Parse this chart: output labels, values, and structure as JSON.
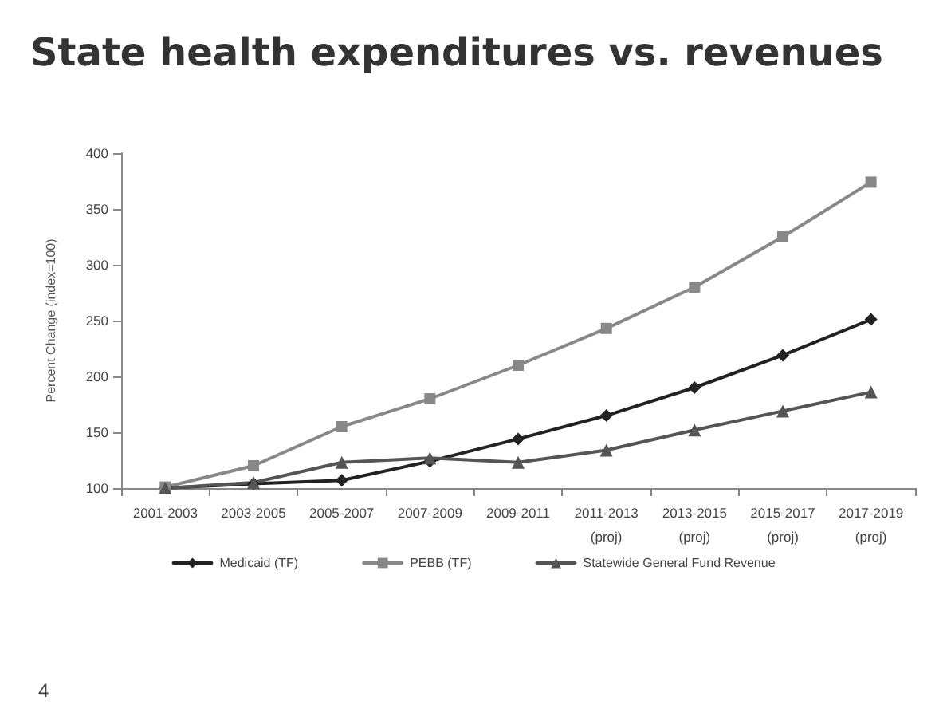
{
  "chart_data": {
    "type": "line",
    "title": "State health expenditures vs. revenues",
    "ylabel": "Percent Change (index=100)",
    "categories": [
      "2001-2003",
      "2003-2005",
      "2005-2007",
      "2007-2009",
      "2009-2011",
      "2011-2013\n(proj)",
      "2013-2015\n(proj)",
      "2015-2017\n(proj)",
      "2017-2019\n(proj)"
    ],
    "series": [
      {
        "name": "Medicaid (TF)",
        "color": "#222222",
        "marker": "diamond",
        "values": [
          100,
          104,
          107,
          124,
          144,
          165,
          190,
          219,
          251
        ]
      },
      {
        "name": "PEBB (TF)",
        "color": "#888888",
        "marker": "square",
        "values": [
          101,
          120,
          155,
          180,
          210,
          243,
          280,
          325,
          374
        ]
      },
      {
        "name": "Statewide General Fund Revenue",
        "color": "#555555",
        "marker": "triangle",
        "values": [
          100,
          105,
          123,
          127,
          123,
          134,
          152,
          169,
          186
        ]
      }
    ],
    "ylim": [
      100,
      400
    ],
    "yticks": [
      100,
      150,
      200,
      250,
      300,
      350,
      400
    ],
    "grid": false,
    "legend": "bottom",
    "annotations": [
      "4"
    ]
  }
}
